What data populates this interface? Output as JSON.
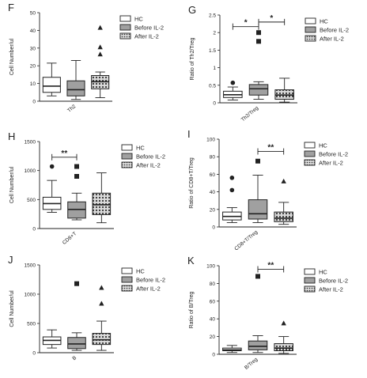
{
  "chart_data": [
    {
      "panel": "F",
      "type": "box",
      "ylabel": "Cell Number/ul",
      "yticks": [
        0,
        10,
        20,
        30,
        40,
        50
      ],
      "ylim": [
        0,
        50
      ],
      "categories": [
        "Th2"
      ],
      "series": [
        {
          "name": "HC",
          "whisker_low": 3,
          "q1": 5,
          "median": 8.5,
          "q3": 13.5,
          "whisker_high": 21.5,
          "outliers": []
        },
        {
          "name": "Before IL-2",
          "whisker_low": 1,
          "q1": 3,
          "median": 6.5,
          "q3": 11.5,
          "whisker_high": 23,
          "outliers": []
        },
        {
          "name": "After IL-2",
          "whisker_low": 2,
          "q1": 7,
          "median": 11,
          "q3": 14.5,
          "whisker_high": 16.5,
          "outliers": [
            26.5,
            30.5,
            41.5
          ]
        }
      ],
      "significance": []
    },
    {
      "panel": "G",
      "type": "box",
      "ylabel": "Ratio of Th2/Treg",
      "yticks": [
        0.0,
        0.5,
        1.0,
        1.5,
        2.0,
        2.5
      ],
      "ylim": [
        0,
        2.5
      ],
      "categories": [
        "Th2/Treg"
      ],
      "series": [
        {
          "name": "HC",
          "whisker_low": 0.08,
          "q1": 0.15,
          "median": 0.23,
          "q3": 0.33,
          "whisker_high": 0.45,
          "outliers": [
            0.57
          ]
        },
        {
          "name": "Before IL-2",
          "whisker_low": 0.1,
          "q1": 0.22,
          "median": 0.4,
          "q3": 0.52,
          "whisker_high": 0.6,
          "outliers": [
            1.75,
            2.0
          ]
        },
        {
          "name": "After IL-2",
          "whisker_low": 0.02,
          "q1": 0.1,
          "median": 0.22,
          "q3": 0.37,
          "whisker_high": 0.7,
          "outliers": []
        }
      ],
      "significance": [
        {
          "from": 0,
          "to": 1,
          "y": 2.17,
          "label": "*"
        },
        {
          "from": 1,
          "to": 2,
          "y": 2.3,
          "label": "*"
        }
      ]
    },
    {
      "panel": "H",
      "type": "box",
      "ylabel": "Cell Number/ul",
      "yticks": [
        0,
        500,
        1000,
        1500
      ],
      "ylim": [
        0,
        1500
      ],
      "categories": [
        "CD8+T"
      ],
      "series": [
        {
          "name": "HC",
          "whisker_low": 280,
          "q1": 330,
          "median": 430,
          "q3": 540,
          "whisker_high": 830,
          "outliers": [
            1070
          ]
        },
        {
          "name": "Before IL-2",
          "whisker_low": 150,
          "q1": 180,
          "median": 330,
          "q3": 460,
          "whisker_high": 610,
          "outliers": [
            900,
            1070
          ]
        },
        {
          "name": "After IL-2",
          "whisker_low": 100,
          "q1": 240,
          "median": 410,
          "q3": 610,
          "whisker_high": 960,
          "outliers": []
        }
      ],
      "significance": [
        {
          "from": 0,
          "to": 1,
          "y": 1230,
          "label": "**"
        }
      ]
    },
    {
      "panel": "I",
      "type": "box",
      "ylabel": "Ratio of CD8+T/Treg",
      "yticks": [
        0,
        20,
        40,
        60,
        80,
        100
      ],
      "ylim": [
        0,
        100
      ],
      "categories": [
        "CD8+T/Treg"
      ],
      "series": [
        {
          "name": "HC",
          "whisker_low": 5,
          "q1": 8,
          "median": 12,
          "q3": 17,
          "whisker_high": 22,
          "outliers": [
            42,
            56
          ]
        },
        {
          "name": "Before IL-2",
          "whisker_low": 5,
          "q1": 9,
          "median": 15,
          "q3": 31,
          "whisker_high": 59,
          "outliers": [
            75
          ]
        },
        {
          "name": "After IL-2",
          "whisker_low": 3,
          "q1": 6,
          "median": 10,
          "q3": 17,
          "whisker_high": 28,
          "outliers": [
            52
          ]
        }
      ],
      "significance": [
        {
          "from": 1,
          "to": 2,
          "y": 86,
          "label": "**"
        }
      ]
    },
    {
      "panel": "J",
      "type": "box",
      "ylabel": "Cell Number/ul",
      "yticks": [
        0,
        500,
        1000,
        1500
      ],
      "ylim": [
        0,
        1500
      ],
      "categories": [
        "B"
      ],
      "series": [
        {
          "name": "HC",
          "whisker_low": 80,
          "q1": 140,
          "median": 210,
          "q3": 270,
          "whisker_high": 390,
          "outliers": []
        },
        {
          "name": "Before IL-2",
          "whisker_low": 40,
          "q1": 70,
          "median": 150,
          "q3": 260,
          "whisker_high": 340,
          "outliers": [
            1180
          ]
        },
        {
          "name": "After IL-2",
          "whisker_low": 40,
          "q1": 140,
          "median": 220,
          "q3": 330,
          "whisker_high": 540,
          "outliers": [
            840,
            1110
          ]
        }
      ],
      "significance": []
    },
    {
      "panel": "K",
      "type": "box",
      "ylabel": "Ratio of B/Treg",
      "yticks": [
        0,
        20,
        40,
        60,
        80,
        100
      ],
      "ylim": [
        0,
        100
      ],
      "categories": [
        "B/Treg"
      ],
      "series": [
        {
          "name": "HC",
          "whisker_low": 2,
          "q1": 4,
          "median": 5,
          "q3": 7,
          "whisker_high": 10,
          "outliers": []
        },
        {
          "name": "Before IL-2",
          "whisker_low": 2,
          "q1": 5,
          "median": 9,
          "q3": 15,
          "whisker_high": 21,
          "outliers": [
            88
          ]
        },
        {
          "name": "After IL-2",
          "whisker_low": 1,
          "q1": 4,
          "median": 7,
          "q3": 12,
          "whisker_high": 20,
          "outliers": [
            35
          ]
        }
      ],
      "significance": [
        {
          "from": 1,
          "to": 2,
          "y": 96,
          "label": "**"
        }
      ]
    }
  ],
  "styles": {
    "series": [
      {
        "fill": "#ffffff",
        "marker": "circle"
      },
      {
        "fill": "#a0a0a0",
        "marker": "square"
      },
      {
        "fill": "#d8d8d8",
        "pattern": "dots",
        "marker": "triangle"
      }
    ],
    "ink": "#222222"
  }
}
